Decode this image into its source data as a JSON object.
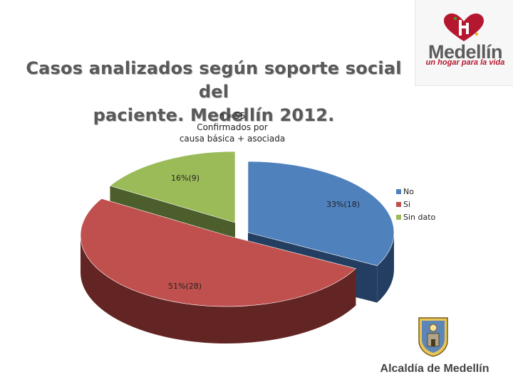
{
  "slide": {
    "title_lines": [
      "Casos analizados según soporte social del",
      "paciente. Medellín 2012."
    ]
  },
  "logo": {
    "name": "Medellín",
    "tagline": "un hogar para la vida",
    "icon": "heart-logo-icon"
  },
  "footer": {
    "text": "Alcaldía de Medellín",
    "icon": "coat-of-arms-icon"
  },
  "chart_data": {
    "type": "pie",
    "subtitle_lines": [
      "n =55",
      "Confirmados por",
      "causa básica + asociada"
    ],
    "categories": [
      "No",
      "Si",
      "Sin dato"
    ],
    "values": [
      18,
      28,
      9
    ],
    "percentages": [
      33,
      51,
      16
    ],
    "data_labels": [
      "33%(18)",
      "51%(28)",
      "16%(9)"
    ],
    "colors": [
      "#4f81bd",
      "#c0504d",
      "#9bbb59"
    ],
    "side_colors": [
      "#243e61",
      "#632523",
      "#4b5e2b"
    ],
    "legend_position": "right",
    "style": "3d-exploded"
  }
}
